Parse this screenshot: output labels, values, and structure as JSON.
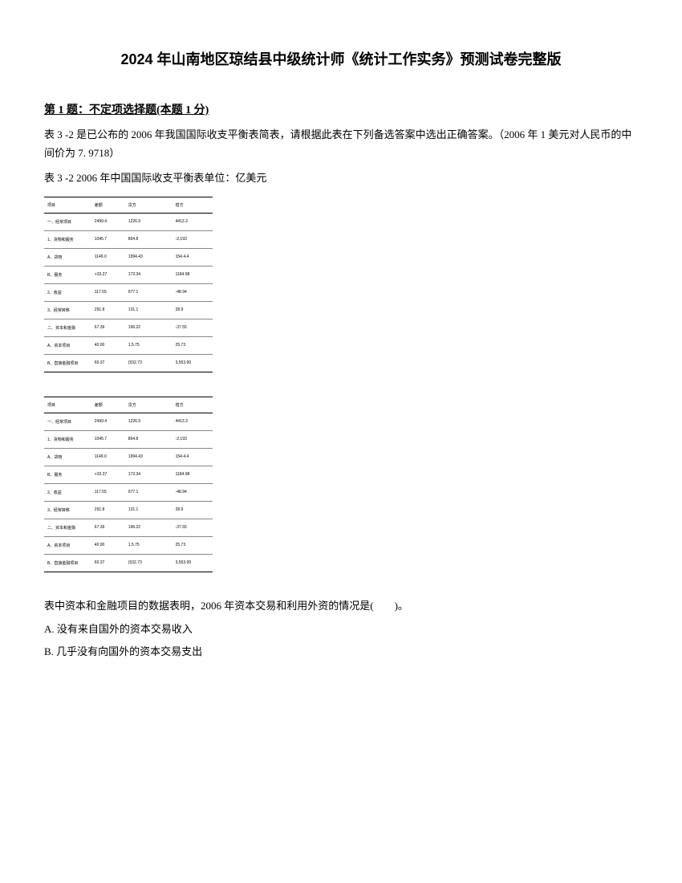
{
  "title": "2024 年山南地区琼结县中级统计师《统计工作实务》预测试卷完整版",
  "question_header": "第 1 题：不定项选择题(本题 1 分)",
  "question_text": "表 3 -2 是已公布的 2006 年我国国际收支平衡表简表，请根据此表在下列备选答案中选出正确答案。（2006 年 1 美元对人民币的中间价为 7. 9718）",
  "table_caption": "表 3 -2 2006 年中国国际收支平衡表单位：亿美元",
  "table": {
    "headers": [
      "项目",
      "差额",
      "贷方",
      "借方"
    ],
    "rows": [
      [
        "一、经常项目",
        "2499.4",
        "1226.9",
        "4413.3"
      ],
      [
        "1、货物和服务",
        "1045.7",
        "864.8",
        "-2,193"
      ],
      [
        "A、货物",
        "1149.0",
        "1994.43",
        "154.4.4"
      ],
      [
        "B、服务",
        "+33.37",
        "172.34",
        "1184.98"
      ],
      [
        "2、收益",
        "117.55",
        "977.1",
        "-48.94"
      ],
      [
        "3、经常转移",
        "291.8",
        "131.1",
        "28.9"
      ],
      [
        "二、资本和金融",
        "67.39",
        "196.22",
        "-37.55"
      ],
      [
        "A、资本项目",
        "40.00",
        "1,5.75",
        "25.73"
      ],
      [
        "B、直接金融项目",
        "60.37",
        "(532.73",
        "3,553.99"
      ]
    ]
  },
  "question_prompt": "表中资本和金融项目的数据表明，2006 年资本交易和利用外资的情况是(　　)。",
  "options": {
    "A": "A. 没有来自国外的资本交易收入",
    "B": "B. 几乎没有向国外的资本交易支出"
  }
}
